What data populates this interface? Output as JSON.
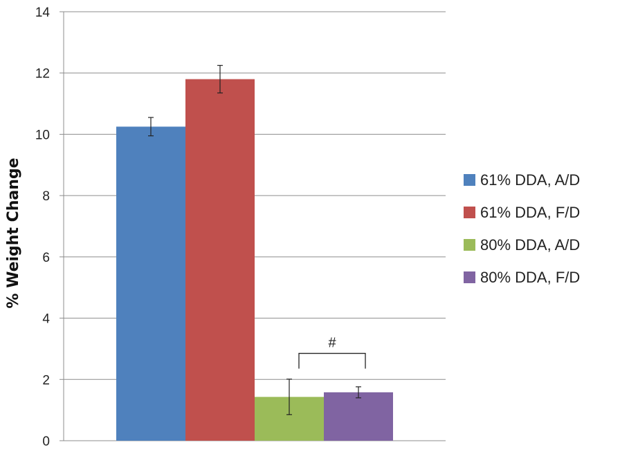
{
  "chart_data": {
    "type": "bar",
    "title": "",
    "xlabel": "",
    "ylabel": "% Weight Change",
    "ylim": [
      0,
      14
    ],
    "yticks": [
      0,
      2,
      4,
      6,
      8,
      10,
      12,
      14
    ],
    "grid": true,
    "legend_position": "right",
    "series": [
      {
        "name": "61% DDA, A/D",
        "value": 10.25,
        "error": 0.3,
        "color": "#4F81BD"
      },
      {
        "name": "61% DDA, F/D",
        "value": 11.8,
        "error": 0.45,
        "color": "#C0504D"
      },
      {
        "name": "80% DDA, A/D",
        "value": 1.43,
        "error": 0.58,
        "color": "#9BBB59"
      },
      {
        "name": "80% DDA, F/D",
        "value": 1.58,
        "error": 0.18,
        "color": "#8064A2"
      }
    ],
    "annotation": {
      "text": "#",
      "between": [
        2,
        3
      ],
      "value": 2.85
    }
  }
}
